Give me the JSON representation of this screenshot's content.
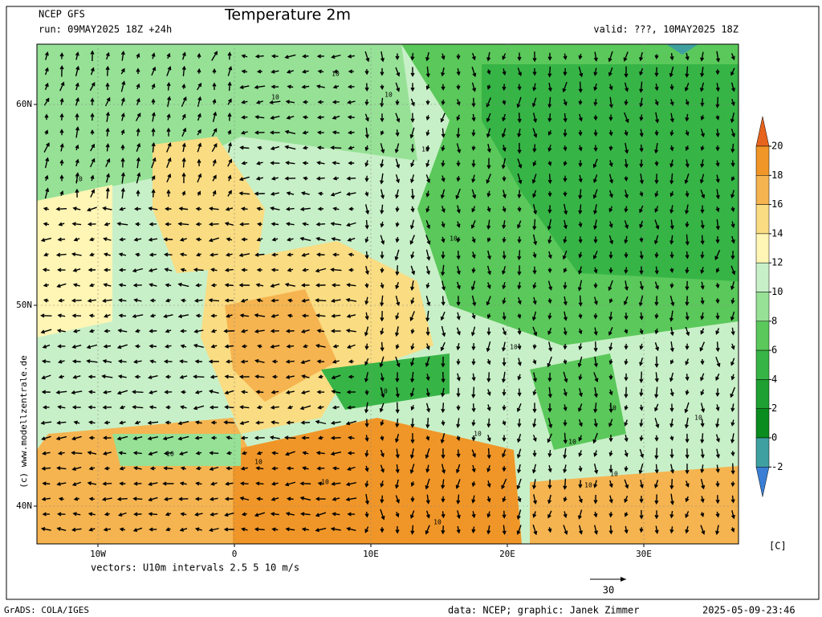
{
  "header": {
    "model": "NCEP GFS",
    "title": "Temperature 2m",
    "run": "run: 09MAY2025 18Z +24h",
    "valid": "valid: ???, 10MAY2025 18Z"
  },
  "map": {
    "lat_labels": [
      {
        "value": 60,
        "label": "60N"
      },
      {
        "value": 50,
        "label": "50N"
      },
      {
        "value": 40,
        "label": "40N"
      }
    ],
    "lon_labels": [
      {
        "value": -10,
        "label": "10W"
      },
      {
        "value": 0,
        "label": "0"
      },
      {
        "value": 10,
        "label": "10E"
      },
      {
        "value": 20,
        "label": "20E"
      },
      {
        "value": 30,
        "label": "30E"
      }
    ],
    "contour_labels": [
      "10",
      "10",
      "10",
      "10",
      "10",
      "10",
      "10",
      "10",
      "10",
      "10",
      "10",
      "10",
      "10",
      "10",
      "10",
      "10",
      "10",
      "10"
    ],
    "vector_note": "vectors: U10m intervals 2.5 5 10 m/s",
    "vector_scale": "30"
  },
  "colorbar": {
    "ticks": [
      20,
      18,
      16,
      14,
      12,
      10,
      8,
      6,
      4,
      2,
      0,
      -2
    ],
    "unit": "[C]",
    "colors": [
      "#e6641e",
      "#f09628",
      "#f5b450",
      "#fadc82",
      "#fff5b4",
      "#c8f0c8",
      "#96e196",
      "#5ac85a",
      "#37b446",
      "#1ea032",
      "#0a8c1e",
      "#3fa0a0",
      "#3a7fd5"
    ]
  },
  "footer": {
    "software": "GrADS: COLA/IGES",
    "credit": "data: NCEP; graphic: Janek Zimmer",
    "timestamp": "2025-05-09-23:46"
  },
  "copyright": "(c) www.modellzentrale.de"
}
